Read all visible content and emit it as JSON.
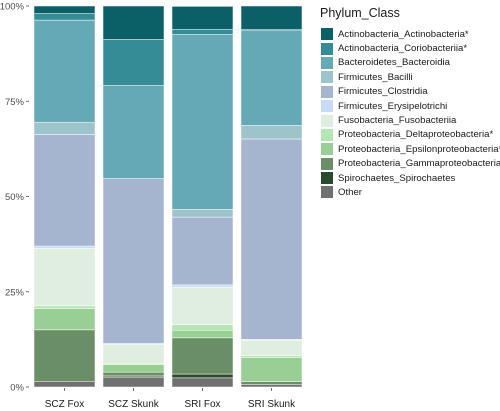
{
  "chart_data": {
    "type": "stacked-bar",
    "categories": [
      "SCZ Fox",
      "SCZ Skunk",
      "SRI Fox",
      "SRI Skunk"
    ],
    "yticks": [
      "0%",
      "25%",
      "50%",
      "75%",
      "100%"
    ],
    "ylim": [
      0,
      100
    ],
    "grid": true,
    "legend_title": "Phylum_Class",
    "legend_position": "right",
    "series": [
      {
        "name": "Actinobacteria_Actinobacteria*",
        "color": "#0b6068",
        "values": [
          2.0,
          8.8,
          6.0,
          6.2
        ]
      },
      {
        "name": "Actinobacteria_Coriobacteriia*",
        "color": "#358c96",
        "values": [
          1.7,
          12.0,
          1.4,
          0.3
        ]
      },
      {
        "name": "Bacteroidetes_Bacteroidia",
        "color": "#65a8b6",
        "values": [
          26.8,
          24.5,
          45.9,
          24.8
        ]
      },
      {
        "name": "Firmicutes_Bacilli",
        "color": "#9ec4cb",
        "values": [
          3.2,
          0.0,
          2.0,
          3.6
        ]
      },
      {
        "name": "Firmicutes_Clostridia",
        "color": "#a5b4cf",
        "values": [
          29.3,
          43.2,
          17.8,
          52.6
        ]
      },
      {
        "name": "Firmicutes_Erysipelotrichi",
        "color": "#c6dbf8",
        "values": [
          0.6,
          0.3,
          0.6,
          0.2
        ]
      },
      {
        "name": "Fusobacteria_Fusobacteriia",
        "color": "#dfeedf",
        "values": [
          15.1,
          5.0,
          9.8,
          4.1
        ]
      },
      {
        "name": "Proteobacteria_Deltaproteobacteria*",
        "color": "#b5e5b2",
        "values": [
          0.7,
          0.3,
          1.5,
          0.5
        ]
      },
      {
        "name": "Proteobacteria_Epsilonproteobacteria*",
        "color": "#98cf94",
        "values": [
          5.6,
          2.0,
          2.0,
          6.3
        ]
      },
      {
        "name": "Proteobacteria_Gammaproteobacteria*",
        "color": "#6a8f66",
        "values": [
          13.5,
          1.0,
          9.5,
          0.7
        ]
      },
      {
        "name": "Spirochaetes_Spirochaetes",
        "color": "#2a4a2d",
        "values": [
          0.0,
          0.3,
          1.0,
          0.0
        ]
      },
      {
        "name": "Other",
        "color": "#707070",
        "values": [
          1.5,
          2.6,
          2.4,
          0.7
        ]
      }
    ]
  }
}
